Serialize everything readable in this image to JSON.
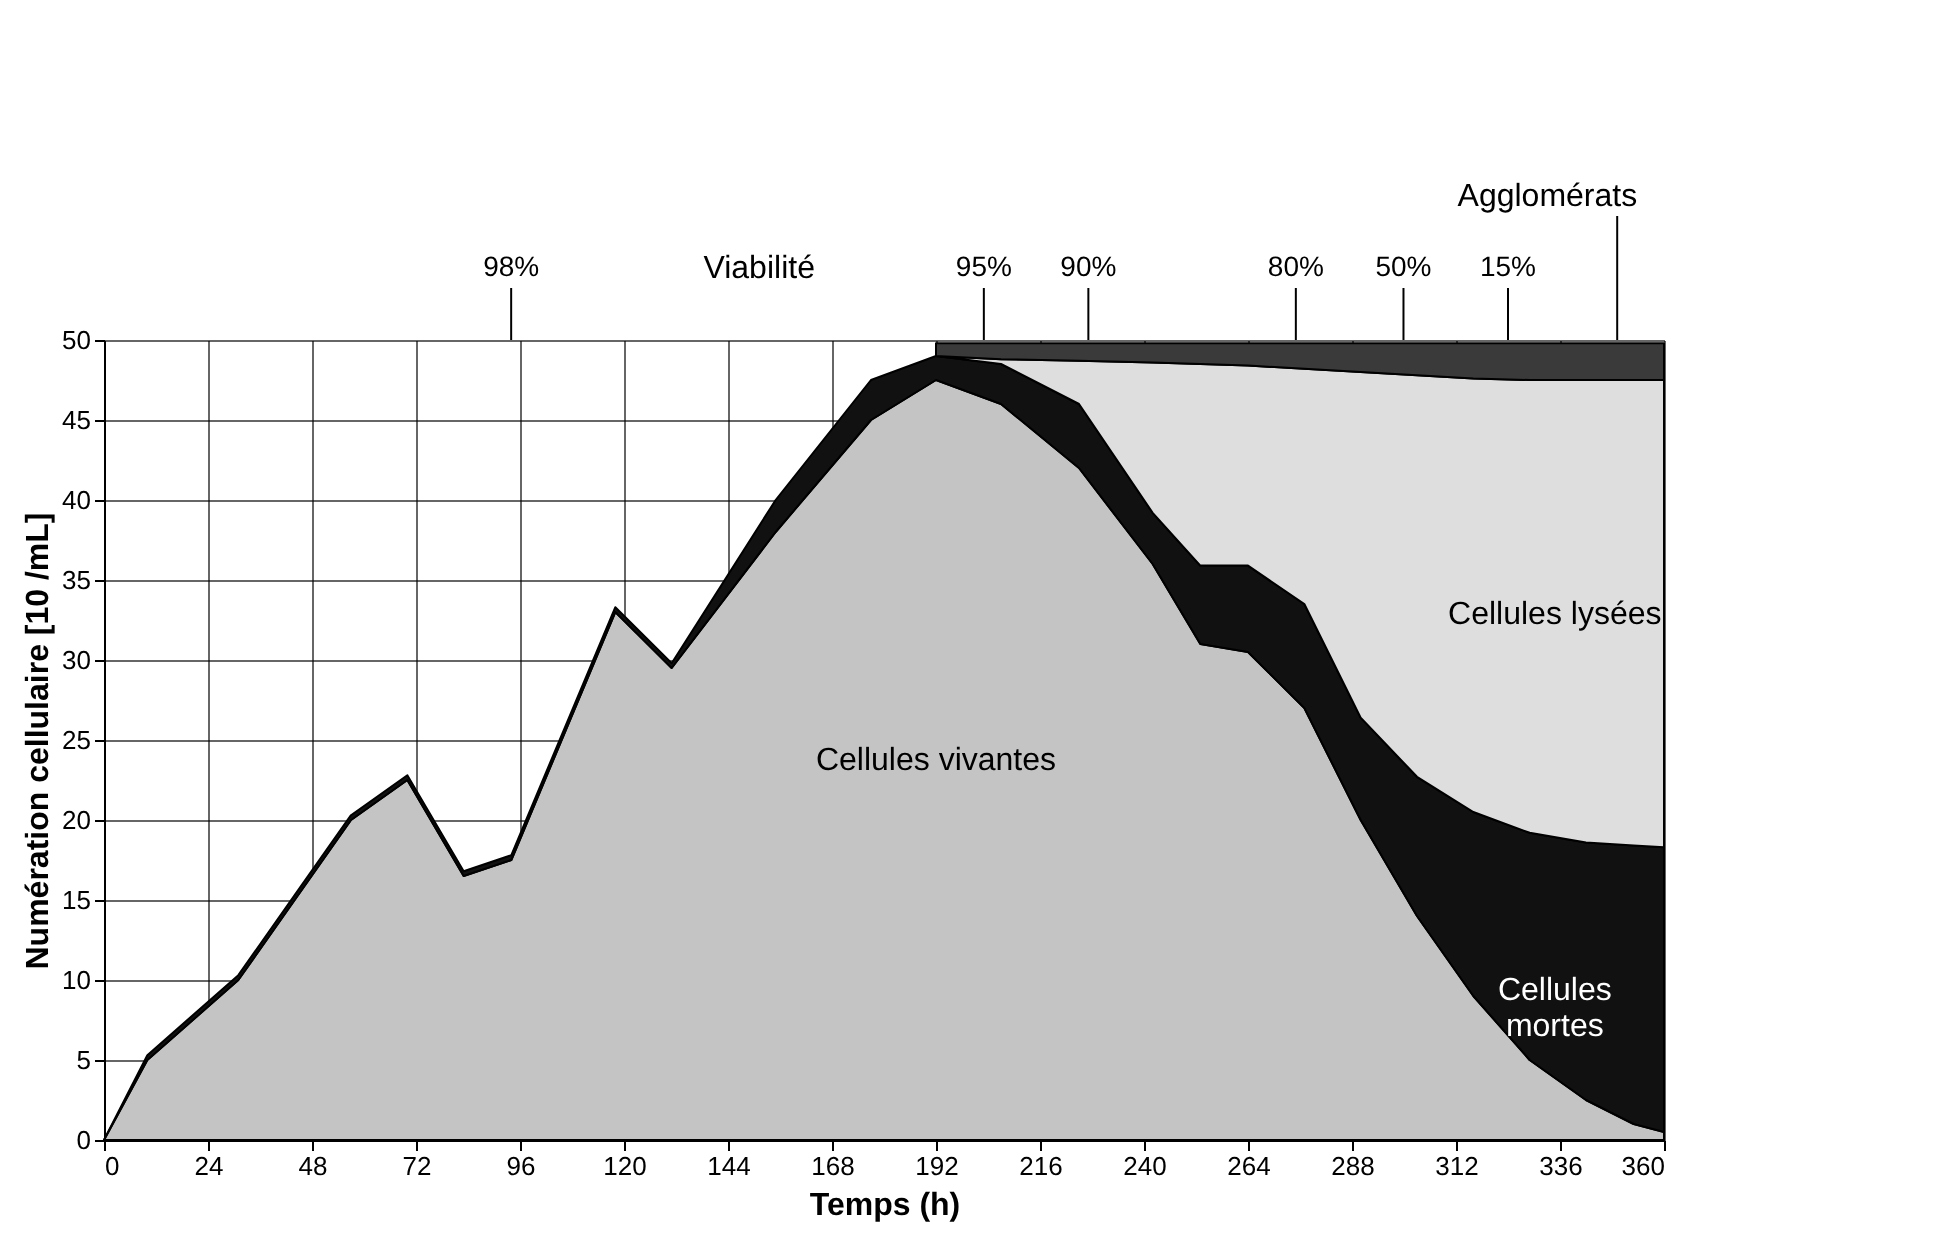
{
  "chart_data": {
    "type": "area",
    "stacked": true,
    "xlabel": "Temps (h)",
    "ylabel": "Numération cellulaire [10 /mL]",
    "x": [
      0,
      10,
      31,
      44,
      57,
      70,
      83,
      94,
      118,
      131,
      155,
      177,
      192,
      207,
      225,
      242,
      253,
      264,
      277,
      290,
      303,
      316,
      329,
      342,
      353,
      360
    ],
    "series": [
      {
        "name": "Cellules vivantes",
        "color": "#c4c4c4",
        "values": [
          0,
          5,
          10,
          15,
          20,
          22.5,
          16.5,
          17.5,
          33,
          29.5,
          38,
          45,
          47.5,
          46,
          42,
          36,
          31,
          30.5,
          27,
          20,
          14,
          9,
          5,
          2.5,
          1,
          0.5
        ]
      },
      {
        "name": "Cellules mortes",
        "color": "#111111",
        "values": [
          0,
          0.3,
          0.3,
          0.3,
          0.3,
          0.3,
          0.3,
          0.3,
          0.3,
          0.3,
          2,
          2.5,
          1.5,
          2.5,
          4,
          3.2,
          4.9,
          5.4,
          6.5,
          6.4,
          8.7,
          11.5,
          14.2,
          16.1,
          17.4,
          17.8
        ]
      },
      {
        "name": "Cellules lysées",
        "color": "#dedede",
        "values": [
          null,
          null,
          null,
          null,
          null,
          null,
          null,
          null,
          null,
          null,
          null,
          null,
          0,
          0.3,
          2.7,
          9.4,
          12.6,
          12.5,
          14.7,
          21.6,
          25.1,
          27.1,
          28.3,
          28.9,
          29.1,
          29.2
        ]
      },
      {
        "name": "Agglomérats",
        "color": "#3a3a3a",
        "values": [
          null,
          null,
          null,
          null,
          null,
          null,
          null,
          null,
          null,
          null,
          null,
          null,
          0.8,
          1,
          1.1,
          1.2,
          1.3,
          1.4,
          1.6,
          1.8,
          2,
          2.2,
          2.3,
          2.3,
          2.3,
          2.3
        ]
      }
    ],
    "xlim": [
      0,
      360
    ],
    "xticks": [
      0,
      24,
      48,
      72,
      96,
      120,
      144,
      168,
      192,
      216,
      240,
      264,
      288,
      312,
      336,
      360
    ],
    "ylim": [
      0,
      50
    ],
    "yticks": [
      0,
      5,
      10,
      15,
      20,
      25,
      30,
      35,
      40,
      45,
      50
    ],
    "grid": true,
    "annotations": [
      "Viabilité",
      "98%",
      "95%",
      "90%",
      "80%",
      "50%",
      "15%"
    ]
  }
}
